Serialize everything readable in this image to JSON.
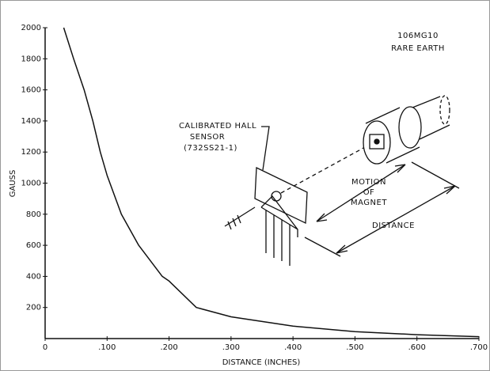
{
  "chart_data": {
    "type": "line",
    "x_label": "DISTANCE (INCHES)",
    "y_label": "GAUSS",
    "x": [
      0.03,
      0.046,
      0.063,
      0.077,
      0.089,
      0.1,
      0.123,
      0.151,
      0.189,
      0.2,
      0.244,
      0.3,
      0.4,
      0.5,
      0.6,
      0.7
    ],
    "series": [
      {
        "color": "#111111",
        "values": [
          2000,
          1800,
          1600,
          1400,
          1200,
          1050,
          800,
          600,
          400,
          370,
          200,
          140,
          80,
          45,
          25,
          12
        ]
      }
    ],
    "xlim": [
      0,
      0.7
    ],
    "xticks": [
      0,
      {
        "value": 0.1,
        "label": ".100"
      },
      {
        "value": 0.2,
        "label": ".200"
      },
      {
        "value": 0.3,
        "label": ".300"
      },
      {
        "value": 0.4,
        "label": ".400"
      },
      {
        "value": 0.5,
        "label": ".500"
      },
      {
        "value": 0.6,
        "label": ".600"
      },
      {
        "value": 0.7,
        "label": ".700"
      }
    ],
    "ylim": [
      0,
      2000
    ],
    "yticks": [
      200,
      400,
      600,
      800,
      1000,
      1200,
      1400,
      1600,
      1800,
      2000
    ],
    "grid": false,
    "annotations": [
      "106MG10",
      "RARE EARTH",
      "CALIBRATED HALL",
      "SENSOR",
      "(732SS21-1)",
      "MOTION",
      "OF",
      "MAGNET",
      "DISTANCE"
    ]
  }
}
